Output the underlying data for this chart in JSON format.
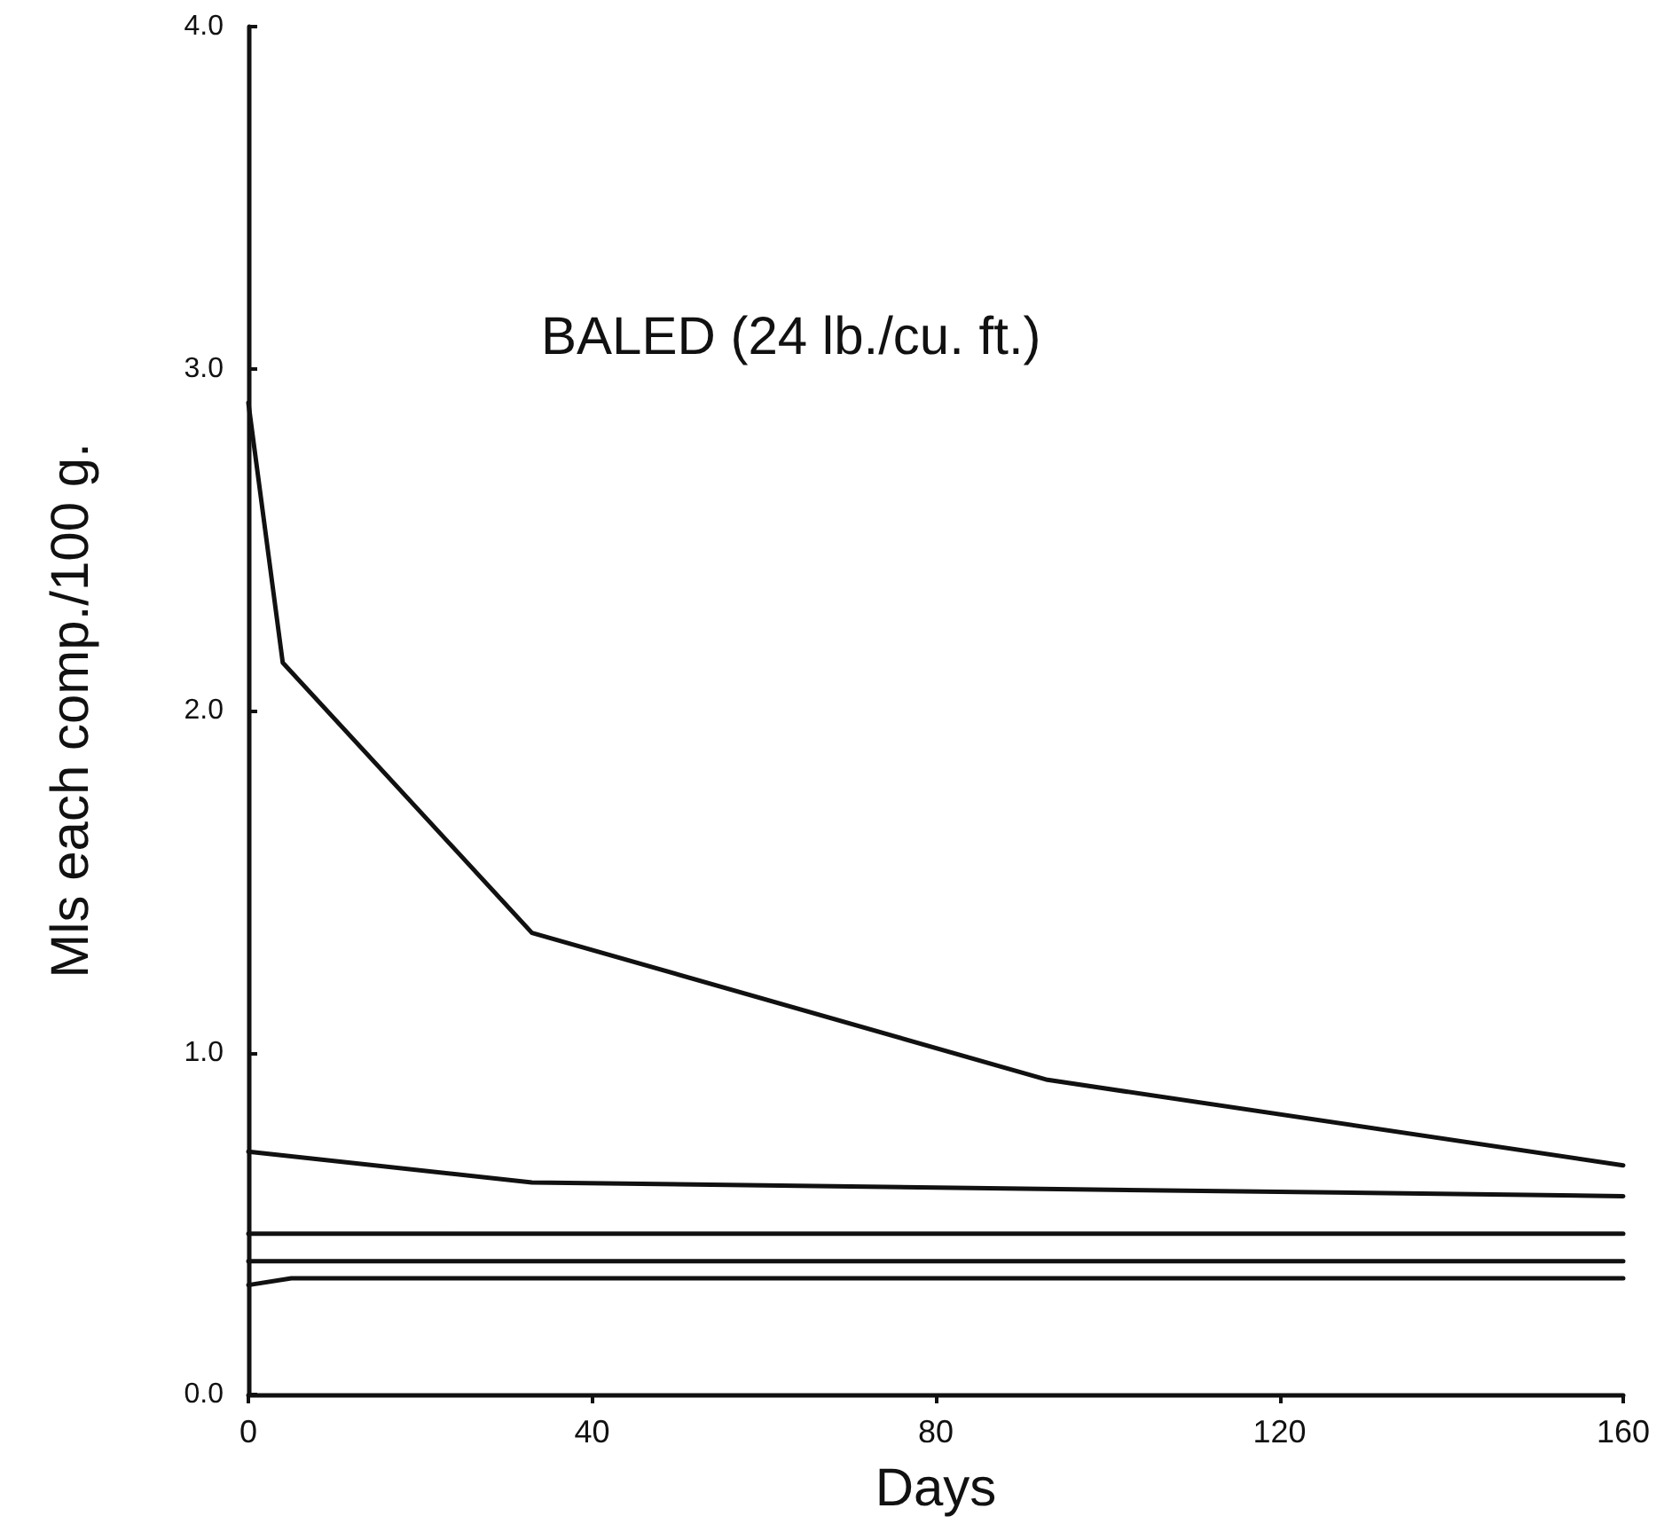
{
  "chart_data": {
    "type": "line",
    "title": "BALED (24 lb./cu. ft.)",
    "xlabel": "Days",
    "ylabel": "Mls each comp./100 g.",
    "xlim": [
      0,
      160
    ],
    "xticks": [
      0,
      40,
      80,
      120,
      160
    ],
    "ylim": [
      0,
      4
    ],
    "yticks": [
      {
        "value": 0,
        "label": "0.0"
      },
      {
        "value": 1,
        "label": "1.0"
      },
      {
        "value": 2,
        "label": "2.0"
      },
      {
        "value": 3,
        "label": "3.0"
      },
      {
        "value": 4,
        "label": "4.0"
      }
    ],
    "grid": false,
    "marker": "none",
    "line_style": "solid",
    "series": [
      {
        "color": "#111111",
        "x": [
          0,
          4,
          33,
          93,
          160
        ],
        "values": [
          2.9,
          2.14,
          1.35,
          0.92,
          0.67
        ]
      },
      {
        "color": "#111111",
        "x": [
          0,
          33,
          160
        ],
        "values": [
          0.71,
          0.62,
          0.58
        ]
      },
      {
        "color": "#111111",
        "x": [
          0,
          160
        ],
        "values": [
          0.47,
          0.47
        ]
      },
      {
        "color": "#111111",
        "x": [
          0,
          160
        ],
        "values": [
          0.39,
          0.39
        ]
      },
      {
        "color": "#111111",
        "x": [
          0,
          5,
          160
        ],
        "values": [
          0.32,
          0.34,
          0.34
        ]
      }
    ]
  }
}
